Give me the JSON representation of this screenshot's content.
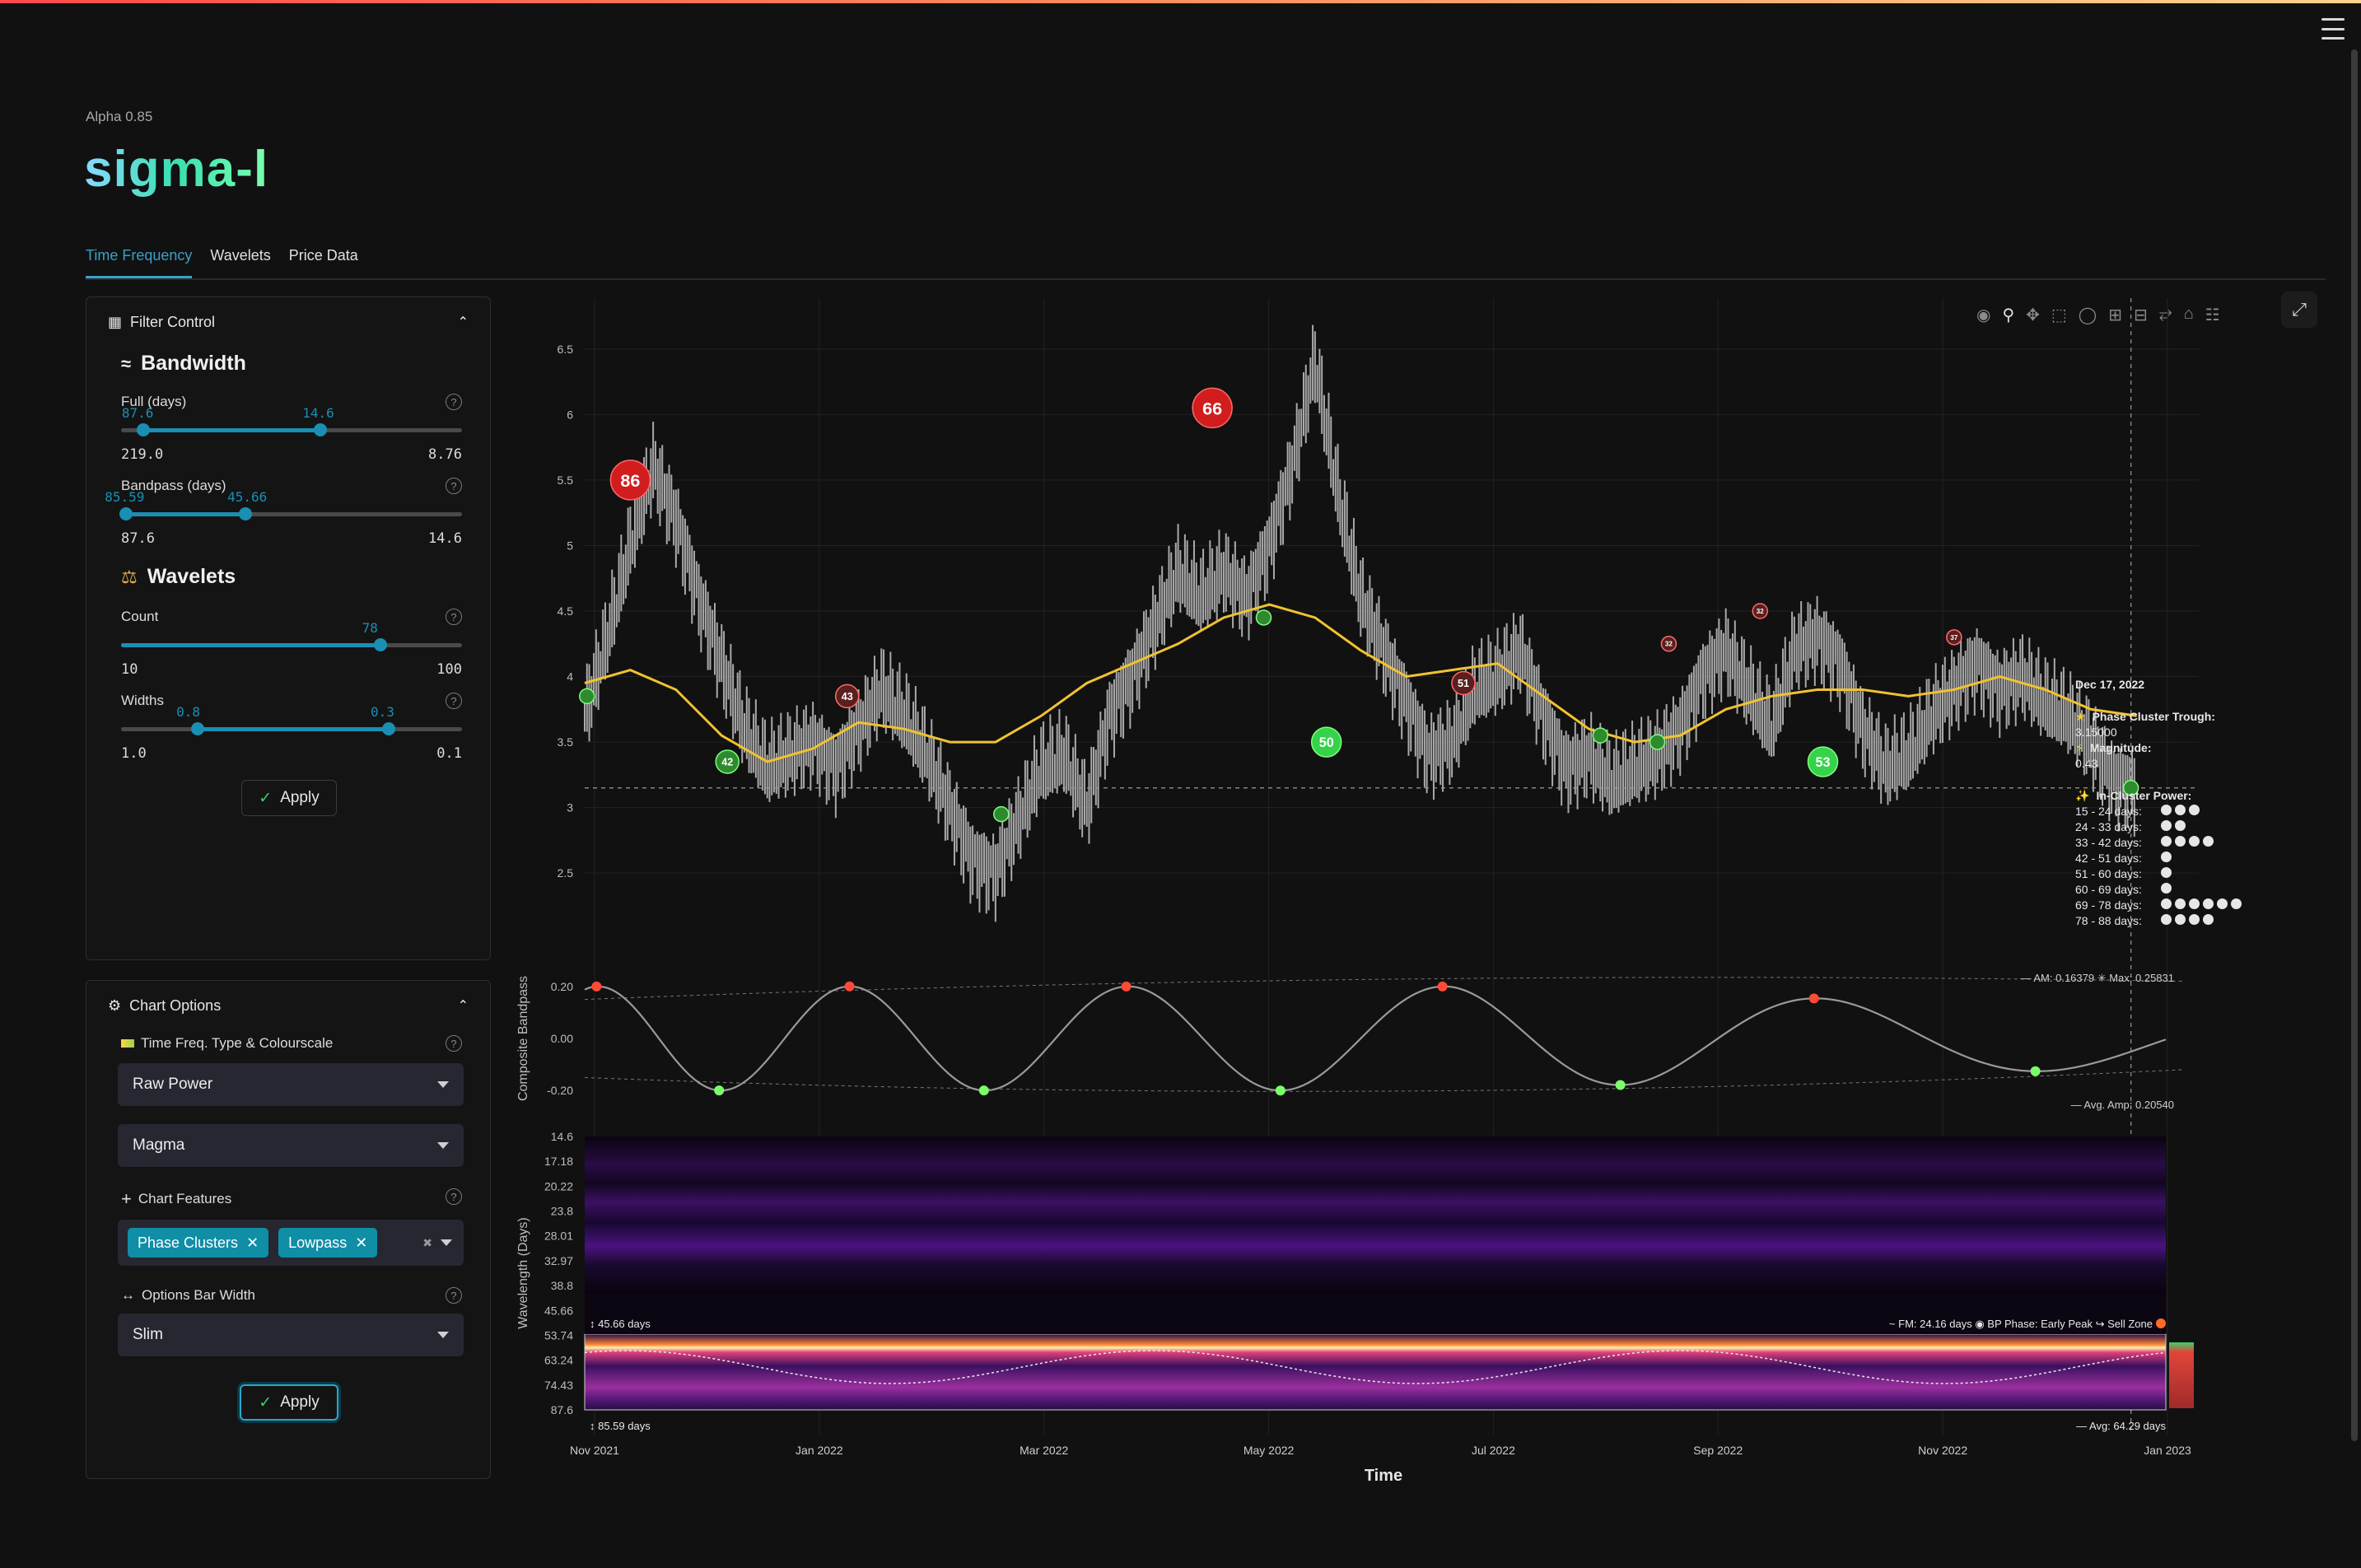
{
  "app": {
    "version": "Alpha 0.85",
    "brand": "sigma-l"
  },
  "tabs": [
    {
      "label": "Time Frequency",
      "active": true
    },
    {
      "label": "Wavelets",
      "active": false
    },
    {
      "label": "Price Data",
      "active": false
    }
  ],
  "filter_control": {
    "title": "Filter Control",
    "bandwidth_title": "Bandwidth",
    "full": {
      "label": "Full (days)",
      "min_label": "219.0",
      "max_label": "8.76",
      "low": "87.6",
      "high": "14.6",
      "low_frac": 0.065,
      "high_frac": 0.585
    },
    "bandpass": {
      "label": "Bandpass (days)",
      "min_label": "87.6",
      "max_label": "14.6",
      "low": "85.59",
      "high": "45.66",
      "low_frac": 0.015,
      "high_frac": 0.365
    },
    "wavelets_title": "Wavelets",
    "count": {
      "label": "Count",
      "min_label": "10",
      "max_label": "100",
      "value": "78",
      "value_frac": 0.76
    },
    "widths": {
      "label": "Widths",
      "min_label": "1.0",
      "max_label": "0.1",
      "low": "0.8",
      "high": "0.3",
      "low_frac": 0.225,
      "high_frac": 0.785
    },
    "apply_label": "Apply"
  },
  "chart_options": {
    "title": "Chart Options",
    "type_label": "Time Freq. Type & Colourscale",
    "type_value": "Raw Power",
    "colourscale_value": "Magma",
    "features_label": "Chart Features",
    "features": [
      "Phase Clusters",
      "Lowpass"
    ],
    "bar_width_label": "Options Bar Width",
    "bar_width_value": "Slim",
    "apply_label": "Apply"
  },
  "toolbar_icons": [
    "camera-icon",
    "zoom-icon",
    "pan-icon",
    "box-select-icon",
    "lasso-icon",
    "zoom-in-icon",
    "zoom-out-icon",
    "autoscale-icon",
    "home-icon",
    "spikelines-icon"
  ],
  "chart_data": {
    "type": "line",
    "xlabel": "Time",
    "x_ticks": [
      "Nov 2021",
      "Jan 2022",
      "Mar 2022",
      "May 2022",
      "Jul 2022",
      "Sep 2022",
      "Nov 2022",
      "Jan 2023"
    ],
    "price_panel": {
      "y_ticks": [
        "6.5",
        "6",
        "5.5",
        "5",
        "4.5",
        "4",
        "3.5",
        "3",
        "2.5"
      ],
      "ylim": [
        2.3,
        6.7
      ],
      "xlim": [
        0,
        14
      ],
      "price": [
        [
          0,
          3.7
        ],
        [
          0.2,
          4.3
        ],
        [
          0.4,
          5.0
        ],
        [
          0.6,
          5.6
        ],
        [
          0.8,
          5.2
        ],
        [
          1.0,
          4.6
        ],
        [
          1.2,
          4.1
        ],
        [
          1.4,
          3.6
        ],
        [
          1.6,
          3.3
        ],
        [
          1.8,
          3.4
        ],
        [
          2.0,
          3.5
        ],
        [
          2.2,
          3.3
        ],
        [
          2.4,
          3.6
        ],
        [
          2.6,
          3.9
        ],
        [
          2.8,
          3.7
        ],
        [
          3.0,
          3.4
        ],
        [
          3.2,
          3.0
        ],
        [
          3.4,
          2.6
        ],
        [
          3.6,
          2.5
        ],
        [
          3.8,
          2.9
        ],
        [
          4.0,
          3.3
        ],
        [
          4.2,
          3.4
        ],
        [
          4.4,
          3.0
        ],
        [
          4.6,
          3.7
        ],
        [
          4.8,
          4.0
        ],
        [
          5.0,
          4.4
        ],
        [
          5.2,
          4.8
        ],
        [
          5.4,
          4.6
        ],
        [
          5.6,
          4.8
        ],
        [
          5.8,
          4.6
        ],
        [
          6.0,
          5.0
        ],
        [
          6.2,
          5.6
        ],
        [
          6.4,
          6.4
        ],
        [
          6.6,
          5.4
        ],
        [
          6.8,
          4.6
        ],
        [
          7.0,
          4.2
        ],
        [
          7.2,
          3.8
        ],
        [
          7.4,
          3.4
        ],
        [
          7.6,
          3.5
        ],
        [
          7.8,
          3.9
        ],
        [
          8.0,
          4.0
        ],
        [
          8.2,
          4.2
        ],
        [
          8.4,
          3.7
        ],
        [
          8.6,
          3.3
        ],
        [
          8.8,
          3.4
        ],
        [
          9.0,
          3.2
        ],
        [
          9.2,
          3.3
        ],
        [
          9.4,
          3.4
        ],
        [
          9.6,
          3.6
        ],
        [
          9.8,
          4.0
        ],
        [
          10.0,
          4.2
        ],
        [
          10.2,
          3.9
        ],
        [
          10.4,
          3.6
        ],
        [
          10.6,
          4.2
        ],
        [
          10.8,
          4.3
        ],
        [
          11.0,
          4.1
        ],
        [
          11.2,
          3.6
        ],
        [
          11.4,
          3.3
        ],
        [
          11.6,
          3.4
        ],
        [
          11.8,
          3.7
        ],
        [
          12.0,
          3.9
        ],
        [
          12.2,
          4.1
        ],
        [
          12.4,
          3.9
        ],
        [
          12.6,
          4.0
        ],
        [
          12.8,
          3.8
        ],
        [
          13.0,
          3.7
        ],
        [
          13.2,
          3.5
        ],
        [
          13.4,
          3.2
        ],
        [
          13.6,
          3.15
        ]
      ],
      "lowpass": [
        [
          0,
          3.95
        ],
        [
          0.4,
          4.05
        ],
        [
          0.8,
          3.9
        ],
        [
          1.2,
          3.55
        ],
        [
          1.6,
          3.35
        ],
        [
          2.0,
          3.45
        ],
        [
          2.4,
          3.65
        ],
        [
          2.8,
          3.6
        ],
        [
          3.2,
          3.5
        ],
        [
          3.6,
          3.5
        ],
        [
          4.0,
          3.7
        ],
        [
          4.4,
          3.95
        ],
        [
          4.8,
          4.1
        ],
        [
          5.2,
          4.25
        ],
        [
          5.6,
          4.45
        ],
        [
          6.0,
          4.55
        ],
        [
          6.4,
          4.45
        ],
        [
          6.8,
          4.2
        ],
        [
          7.2,
          4.0
        ],
        [
          7.6,
          4.05
        ],
        [
          8.0,
          4.1
        ],
        [
          8.4,
          3.85
        ],
        [
          8.8,
          3.6
        ],
        [
          9.2,
          3.5
        ],
        [
          9.6,
          3.55
        ],
        [
          10.0,
          3.75
        ],
        [
          10.4,
          3.85
        ],
        [
          10.8,
          3.9
        ],
        [
          11.2,
          3.9
        ],
        [
          11.6,
          3.85
        ],
        [
          12.0,
          3.9
        ],
        [
          12.4,
          4.0
        ],
        [
          12.8,
          3.9
        ],
        [
          13.2,
          3.75
        ],
        [
          13.6,
          3.7
        ]
      ],
      "peaks": [
        {
          "x": 0.4,
          "y": 5.5,
          "label": "86",
          "size": "large"
        },
        {
          "x": 2.3,
          "y": 3.85,
          "label": "43",
          "size": "small"
        },
        {
          "x": 5.5,
          "y": 6.05,
          "label": "66",
          "size": "large"
        },
        {
          "x": 7.7,
          "y": 3.95,
          "label": "51",
          "size": "small"
        },
        {
          "x": 9.5,
          "y": 4.25,
          "label": "32",
          "size": "tiny"
        },
        {
          "x": 10.3,
          "y": 4.5,
          "label": "32",
          "size": "tiny"
        },
        {
          "x": 12.0,
          "y": 4.3,
          "label": "37",
          "size": "tiny"
        }
      ],
      "troughs": [
        {
          "x": 0.02,
          "y": 3.85,
          "label": "",
          "size": "tiny"
        },
        {
          "x": 1.25,
          "y": 3.35,
          "label": "42",
          "size": "small"
        },
        {
          "x": 3.65,
          "y": 2.95,
          "label": "",
          "size": "tiny"
        },
        {
          "x": 5.95,
          "y": 4.45,
          "label": "",
          "size": "tiny"
        },
        {
          "x": 6.5,
          "y": 3.5,
          "label": "50",
          "size": "medium"
        },
        {
          "x": 8.9,
          "y": 3.55,
          "label": "",
          "size": "tiny"
        },
        {
          "x": 9.4,
          "y": 3.5,
          "label": "",
          "size": "tiny"
        },
        {
          "x": 10.85,
          "y": 3.35,
          "label": "53",
          "size": "medium"
        },
        {
          "x": 13.55,
          "y": 3.15,
          "label": "",
          "size": "tiny"
        }
      ],
      "hover_y": 3.15,
      "hover_x": 13.55
    },
    "bandpass_panel": {
      "ylabel": "Composite Bandpass",
      "y_ticks": [
        "0.20",
        "0.00",
        "-0.20"
      ],
      "ylim": [
        -0.25,
        0.25
      ],
      "am_label": "AM: 0.16379",
      "max_label": "Max: 0.25831",
      "avg_amp_label": "Avg. Amp: 0.20540"
    },
    "wavelength_panel": {
      "ylabel": "Wavelength (Days)",
      "y_ticks": [
        "14.6",
        "17.18",
        "20.22",
        "23.8",
        "28.01",
        "32.97",
        "38.8",
        "45.66",
        "53.74",
        "63.24",
        "74.43",
        "87.6"
      ],
      "top_band_label": "45.66 days",
      "bottom_band_label": "85.59 days",
      "fm_label": "FM: 24.16 days",
      "bp_phase_label": "BP Phase: Early Peak",
      "zone_label": "Sell Zone",
      "avg_label": "Avg: 64.29 days"
    },
    "hover": {
      "date": "Dec 17, 2022",
      "event_label": "Phase Cluster Trough:",
      "event_value": "3.15000",
      "magnitude_label": "Magnitude:",
      "magnitude_value": "0.43",
      "power_label": "In-Cluster Power:",
      "power_rows": [
        {
          "range": "15 - 24 days:",
          "dots": 3
        },
        {
          "range": "24 - 33 days:",
          "dots": 2
        },
        {
          "range": "33 - 42 days:",
          "dots": 4
        },
        {
          "range": "42 - 51 days:",
          "dots": 1
        },
        {
          "range": "51 - 60 days:",
          "dots": 1
        },
        {
          "range": "60 - 69 days:",
          "dots": 1
        },
        {
          "range": "69 - 78 days:",
          "dots": 6
        },
        {
          "range": "78 - 88 days:",
          "dots": 4
        }
      ]
    }
  }
}
